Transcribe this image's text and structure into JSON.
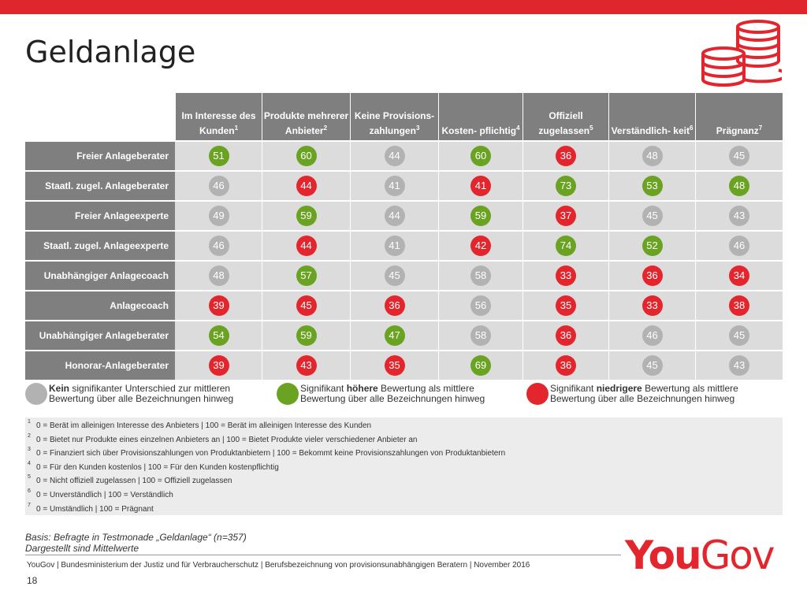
{
  "title": "Geldanlage",
  "colors": {
    "grey": "#b2b2b2",
    "green": "#6aa321",
    "red": "#e3262d",
    "header": "#7f7f7f",
    "accent": "#e0262d"
  },
  "chart_data": {
    "type": "table",
    "columns": [
      {
        "label": "Im Interesse des Kunden",
        "sup": "1"
      },
      {
        "label": "Produkte mehrerer Anbieter",
        "sup": "2"
      },
      {
        "label": "Keine Provisions- zahlungen",
        "sup": "3"
      },
      {
        "label": "Kosten- pflichtig",
        "sup": "4"
      },
      {
        "label": "Offiziell zugelassen",
        "sup": "5"
      },
      {
        "label": "Verständlich- keit",
        "sup": "6"
      },
      {
        "label": "Prägnanz",
        "sup": "7"
      }
    ],
    "rows": [
      {
        "label": "Freier Anlageberater",
        "values": [
          51,
          60,
          44,
          60,
          36,
          48,
          45
        ],
        "sig": [
          "green",
          "green",
          "grey",
          "green",
          "red",
          "grey",
          "grey"
        ]
      },
      {
        "label": "Staatl. zugel. Anlageberater",
        "values": [
          46,
          44,
          41,
          41,
          73,
          53,
          48
        ],
        "sig": [
          "grey",
          "red",
          "grey",
          "red",
          "green",
          "green",
          "green"
        ]
      },
      {
        "label": "Freier Anlageexperte",
        "values": [
          49,
          59,
          44,
          59,
          37,
          45,
          43
        ],
        "sig": [
          "grey",
          "green",
          "grey",
          "green",
          "red",
          "grey",
          "grey"
        ]
      },
      {
        "label": "Staatl. zugel. Anlageexperte",
        "values": [
          46,
          44,
          41,
          42,
          74,
          52,
          46
        ],
        "sig": [
          "grey",
          "red",
          "grey",
          "red",
          "green",
          "green",
          "grey"
        ]
      },
      {
        "label": "Unabhängiger Anlagecoach",
        "values": [
          48,
          57,
          45,
          58,
          33,
          36,
          34
        ],
        "sig": [
          "grey",
          "green",
          "grey",
          "grey",
          "red",
          "red",
          "red"
        ]
      },
      {
        "label": "Anlagecoach",
        "values": [
          39,
          45,
          36,
          56,
          35,
          33,
          38
        ],
        "sig": [
          "red",
          "red",
          "red",
          "grey",
          "red",
          "red",
          "red"
        ]
      },
      {
        "label": "Unabhängiger Anlageberater",
        "values": [
          54,
          59,
          47,
          58,
          36,
          46,
          45
        ],
        "sig": [
          "green",
          "green",
          "green",
          "grey",
          "red",
          "grey",
          "grey"
        ]
      },
      {
        "label": "Honorar-Anlageberater",
        "values": [
          39,
          43,
          35,
          69,
          36,
          45,
          43
        ],
        "sig": [
          "red",
          "red",
          "red",
          "green",
          "red",
          "grey",
          "grey"
        ]
      }
    ]
  },
  "legend": [
    {
      "color": "grey",
      "bold": "Kein",
      "rest": " signifikanter Unterschied zur mittleren Bewertung über alle Bezeichnungen hinweg"
    },
    {
      "color": "green",
      "pre": "Signifikant ",
      "bold": "höhere",
      "rest": " Bewertung als mittlere Bewertung über alle Bezeichnungen hinweg"
    },
    {
      "color": "red",
      "pre": "Signifikant ",
      "bold": "niedrigere",
      "rest": " Bewertung als mittlere Bewertung über alle Bezeichnungen hinweg"
    }
  ],
  "notes": [
    {
      "sup": "1",
      "text": "0 = Berät im alleinigen Interesse des Anbieters | 100 = Berät im alleinigen Interesse des Kunden"
    },
    {
      "sup": "2",
      "text": "0 = Bietet nur Produkte eines einzelnen Anbieters an | 100 = Bietet Produkte vieler verschiedener Anbieter an"
    },
    {
      "sup": "3",
      "text": "0 = Finanziert sich über Provisionszahlungen von Produktanbietern | 100 = Bekommt keine Provisionszahlungen von Produktanbietern"
    },
    {
      "sup": "4",
      "text": "0 = Für den Kunden kostenlos | 100 = Für den Kunden kostenpflichtig"
    },
    {
      "sup": "5",
      "text": "0 = Nicht offiziell zugelassen | 100 = Offiziell zugelassen"
    },
    {
      "sup": "6",
      "text": "0 = Unverständlich | 100 = Verständlich"
    },
    {
      "sup": "7",
      "text": "0 = Umständlich | 100 = Prägnant"
    }
  ],
  "basis_line1": "Basis: Befragte in Testmonade „Geldanlage“ (n=357)",
  "basis_line2": "Dargestellt sind Mittelwerte",
  "footer": "YouGov | Bundesministerium der Justiz und für Verbraucherschutz | Berufsbezeichnung von provisionsunabhängigen Beratern | November 2016",
  "page_number": "18",
  "logo_you": "You",
  "logo_gov": "Gov"
}
